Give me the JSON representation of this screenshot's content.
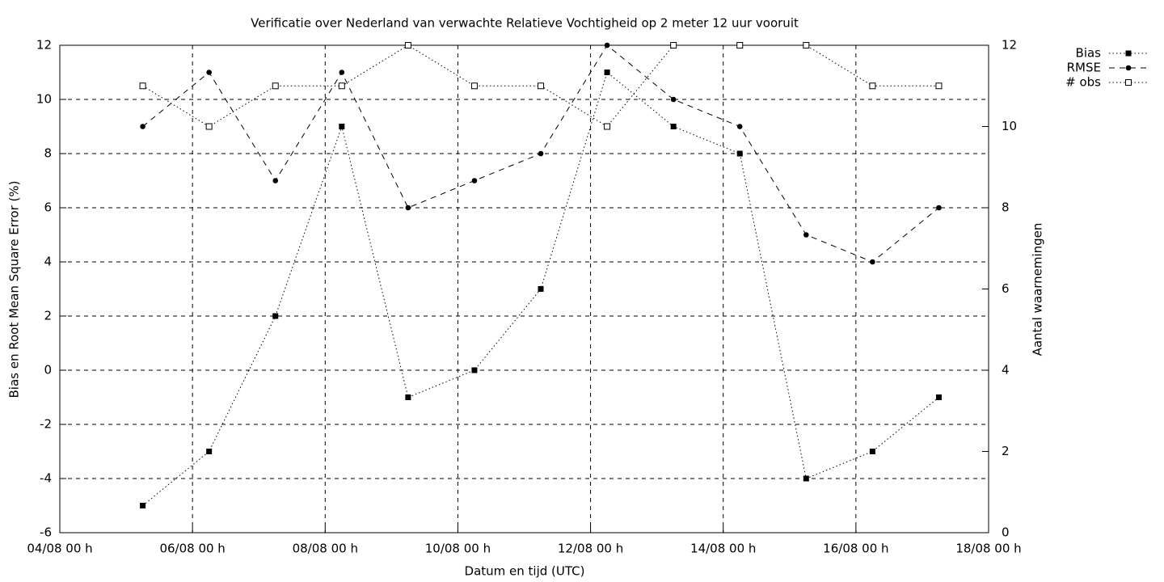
{
  "chart_data": {
    "type": "line",
    "title": "Verificatie over Nederland van verwachte Relatieve Vochtigheid op 2 meter 12 uur vooruit",
    "xlabel": "Datum en tijd (UTC)",
    "ylabel": "Bias en Root Mean Square Error (%)",
    "y2label": "Aantal waarnemingen",
    "x": [
      "05/08 06 h",
      "06/08 06 h",
      "07/08 06 h",
      "08/08 06 h",
      "09/08 06 h",
      "10/08 06 h",
      "11/08 06 h",
      "12/08 06 h",
      "13/08 06 h",
      "14/08 06 h",
      "15/08 06 h",
      "16/08 06 h",
      "17/08 06 h"
    ],
    "xlim": [
      "04/08 00 h",
      "18/08 00 h"
    ],
    "xticks": [
      "04/08 00 h",
      "06/08 00 h",
      "08/08 00 h",
      "10/08 00 h",
      "12/08 00 h",
      "14/08 00 h",
      "16/08 00 h",
      "18/08 00 h"
    ],
    "ylim": [
      -6,
      12
    ],
    "yticks": [
      -6,
      -4,
      -2,
      0,
      2,
      4,
      6,
      8,
      10,
      12
    ],
    "y2lim": [
      0,
      12
    ],
    "y2ticks": [
      0,
      2,
      4,
      6,
      8,
      10,
      12
    ],
    "grid": true,
    "legend": "outside-top-right",
    "series": [
      {
        "name": "Bias",
        "color": "#000000",
        "dash": "dotted",
        "marker": "filled-square",
        "values": [
          -5,
          -3,
          2,
          9,
          -1,
          0,
          3,
          11,
          9,
          8,
          -4,
          -3,
          -1
        ]
      },
      {
        "name": "RMSE",
        "color": "#000000",
        "dash": "dashed",
        "marker": "filled-circle",
        "values": [
          9,
          11,
          7,
          11,
          6,
          7,
          8,
          12,
          10,
          9,
          5,
          4,
          6
        ]
      },
      {
        "name": "# obs",
        "color": "#000000",
        "dash": "dotted",
        "marker": "open-square",
        "axis": "y2",
        "values": [
          11,
          10,
          11,
          11,
          12,
          11,
          11,
          10,
          12,
          12,
          12,
          11,
          11
        ]
      }
    ]
  }
}
